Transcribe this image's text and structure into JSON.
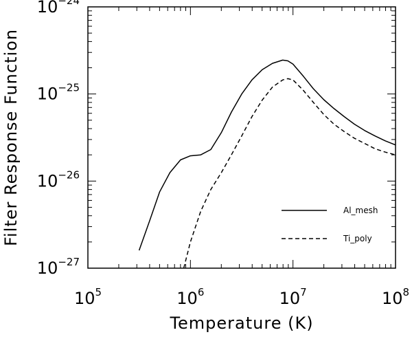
{
  "chart_data": {
    "type": "line",
    "title": "",
    "xlabel": "Temperature (K)",
    "ylabel": "Filter Response Function",
    "xscale": "log",
    "yscale": "log",
    "xlim": [
      100000,
      100000000
    ],
    "ylim": [
      1e-27,
      1e-24
    ],
    "grid": false,
    "legend_position": "lower-right",
    "x_ticks": [
      {
        "base": "10",
        "exp": "5",
        "value": 100000
      },
      {
        "base": "10",
        "exp": "6",
        "value": 1000000
      },
      {
        "base": "10",
        "exp": "7",
        "value": 10000000
      },
      {
        "base": "10",
        "exp": "8",
        "value": 100000000
      }
    ],
    "y_ticks": [
      {
        "base": "10",
        "exp": "−27",
        "value": 1e-27
      },
      {
        "base": "10",
        "exp": "−26",
        "value": 1e-26
      },
      {
        "base": "10",
        "exp": "−25",
        "value": 1e-25
      },
      {
        "base": "10",
        "exp": "−24",
        "value": 1e-24
      }
    ],
    "series": [
      {
        "name": "Al_mesh",
        "style": "solid",
        "color": "#000000",
        "x": [
          316000,
          400000,
          500000,
          630000,
          800000,
          1000000,
          1260000,
          1580000,
          2000000,
          2510000,
          3160000,
          3980000,
          5010000,
          6310000,
          7940000,
          8910000,
          10000000,
          12600000,
          15800000,
          20000000,
          25100000,
          31600000,
          39800000,
          50100000,
          63100000,
          79400000,
          100000000
        ],
        "y": [
          1.6e-27,
          3.5e-27,
          7.5e-27,
          1.25e-26,
          1.75e-26,
          1.95e-26,
          2e-26,
          2.3e-26,
          3.6e-26,
          6.2e-26,
          1e-25,
          1.45e-25,
          1.9e-25,
          2.25e-25,
          2.45e-25,
          2.4e-25,
          2.2e-25,
          1.6e-25,
          1.15e-25,
          8.6e-26,
          6.8e-26,
          5.5e-26,
          4.5e-26,
          3.8e-26,
          3.3e-26,
          2.9e-26,
          2.6e-26
        ]
      },
      {
        "name": "Ti_poly",
        "style": "dashed",
        "color": "#000000",
        "x": [
          860000,
          1000000,
          1260000,
          1580000,
          2000000,
          2510000,
          3160000,
          3980000,
          5010000,
          6310000,
          7940000,
          8910000,
          10000000,
          12600000,
          15800000,
          20000000,
          25100000,
          31600000,
          39800000,
          50100000,
          63100000,
          79400000,
          100000000
        ],
        "y": [
          1e-27,
          2e-27,
          4.5e-27,
          8e-27,
          1.25e-26,
          2e-26,
          3.3e-26,
          5.5e-26,
          8.5e-26,
          1.2e-25,
          1.45e-25,
          1.5e-25,
          1.45e-25,
          1.1e-25,
          8e-26,
          5.8e-26,
          4.5e-26,
          3.7e-26,
          3.1e-26,
          2.7e-26,
          2.35e-26,
          2.15e-26,
          2e-26
        ]
      }
    ]
  }
}
